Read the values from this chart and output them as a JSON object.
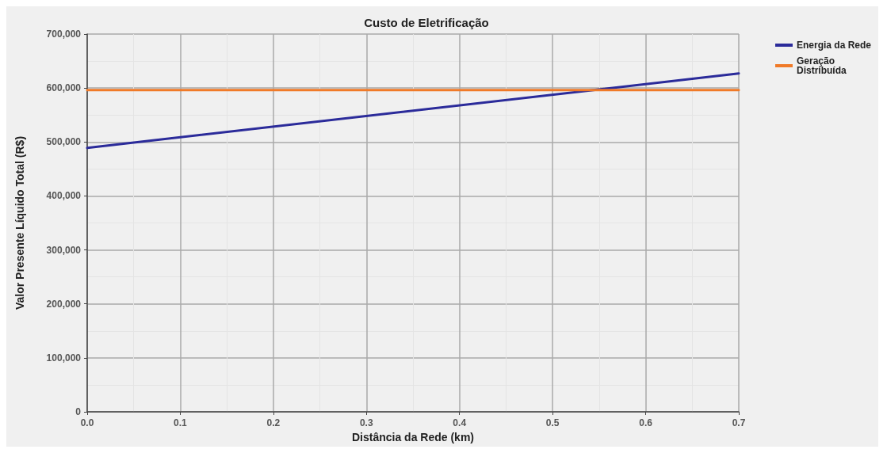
{
  "chart_data": {
    "type": "line",
    "title": "Custo de Eletrificação",
    "xlabel": "Distância da Rede (km)",
    "ylabel": "Valor Presente Líquido Total (R$)",
    "x": [
      0,
      0.7
    ],
    "series": [
      {
        "name": "Energia da Rede",
        "color": "#2b2b9a",
        "values": [
          489000,
          627000
        ]
      },
      {
        "name": "Geração Distribuída",
        "color": "#f07a28",
        "values": [
          596000,
          596000
        ]
      }
    ],
    "xlim": [
      0,
      0.7
    ],
    "xticks": [
      {
        "value": 0,
        "label": "0.0"
      },
      0.1,
      0.2,
      0.3,
      0.4,
      0.5,
      0.6,
      0.7
    ],
    "ylim": [
      0,
      700000
    ],
    "yticks": [
      {
        "value": 0,
        "label": "0"
      },
      {
        "value": 100000,
        "label": "100,000"
      },
      {
        "value": 200000,
        "label": "200,000"
      },
      {
        "value": 300000,
        "label": "300,000"
      },
      {
        "value": 400000,
        "label": "400,000"
      },
      {
        "value": 500000,
        "label": "500,000"
      },
      {
        "value": 600000,
        "label": "600,000"
      },
      {
        "value": 700000,
        "label": "700,000"
      }
    ],
    "grid": true,
    "legend": "top right",
    "marker": "none",
    "line_style": "solid"
  }
}
